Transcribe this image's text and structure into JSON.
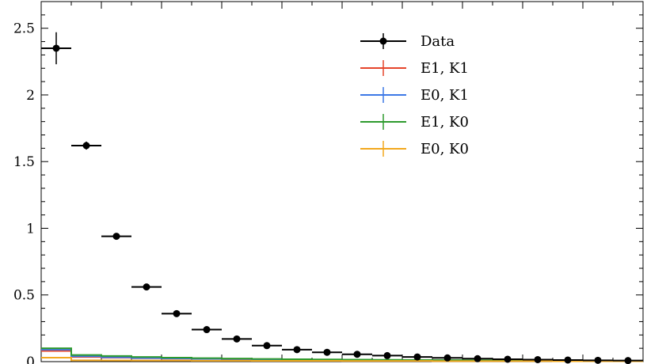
{
  "chart_data": {
    "type": "scatter",
    "title": "",
    "xlabel": "",
    "ylabel": "",
    "xlim": [
      0,
      20
    ],
    "ylim": [
      0,
      2.7
    ],
    "yticks": [
      {
        "value": 0,
        "label": "0"
      },
      {
        "value": 0.5,
        "label": "0.5"
      },
      {
        "value": 1,
        "label": "1"
      },
      {
        "value": 1.5,
        "label": "1.5"
      },
      {
        "value": 2,
        "label": "2"
      },
      {
        "value": 2.5,
        "label": "2.5"
      }
    ],
    "grid": false,
    "legend_position": "top-right",
    "data_series": {
      "name": "Data",
      "color": "#000000",
      "x": [
        0.5,
        1.5,
        2.5,
        3.5,
        4.5,
        5.5,
        6.5,
        7.5,
        8.5,
        9.5,
        10.5,
        11.5,
        12.5,
        13.5,
        14.5,
        15.5,
        16.5,
        17.5,
        18.5,
        19.5
      ],
      "y": [
        2.35,
        1.62,
        0.94,
        0.56,
        0.36,
        0.24,
        0.17,
        0.12,
        0.09,
        0.07,
        0.055,
        0.045,
        0.035,
        0.028,
        0.022,
        0.018,
        0.015,
        0.012,
        0.01,
        0.008
      ],
      "yerr": [
        0.12,
        0.03,
        0.01,
        0.008,
        0.005,
        0.004,
        0.003,
        0.002,
        0.002,
        0.002,
        0.001,
        0.001,
        0.001,
        0.001,
        0.001,
        0.001,
        0.001,
        0.001,
        0.001,
        0.001
      ]
    },
    "series": [
      {
        "name": "E1, K1",
        "color": "#e5442a",
        "y": [
          0.08,
          0.035,
          0.03,
          0.025,
          0.022,
          0.02,
          0.018,
          0.016,
          0.015,
          0.014,
          0.013,
          0.012,
          0.011,
          0.01,
          0.009,
          0.008,
          0.008,
          0.007,
          0.007,
          0.006
        ]
      },
      {
        "name": "E0, K1",
        "color": "#3c78e6",
        "y": [
          0.09,
          0.04,
          0.033,
          0.027,
          0.024,
          0.021,
          0.019,
          0.017,
          0.016,
          0.015,
          0.014,
          0.012,
          0.011,
          0.01,
          0.009,
          0.009,
          0.008,
          0.007,
          0.007,
          0.006
        ]
      },
      {
        "name": "E1, K0",
        "color": "#2e9a2e",
        "y": [
          0.1,
          0.05,
          0.042,
          0.035,
          0.03,
          0.026,
          0.023,
          0.02,
          0.018,
          0.016,
          0.015,
          0.013,
          0.012,
          0.011,
          0.01,
          0.009,
          0.008,
          0.008,
          0.007,
          0.006
        ]
      },
      {
        "name": "E0, K0",
        "color": "#f2a81d",
        "y": [
          0.03,
          0.01,
          0.009,
          0.008,
          0.008,
          0.007,
          0.007,
          0.006,
          0.006,
          0.006,
          0.005,
          0.005,
          0.005,
          0.004,
          0.004,
          0.004,
          0.004,
          0.003,
          0.003,
          0.003
        ]
      }
    ]
  }
}
